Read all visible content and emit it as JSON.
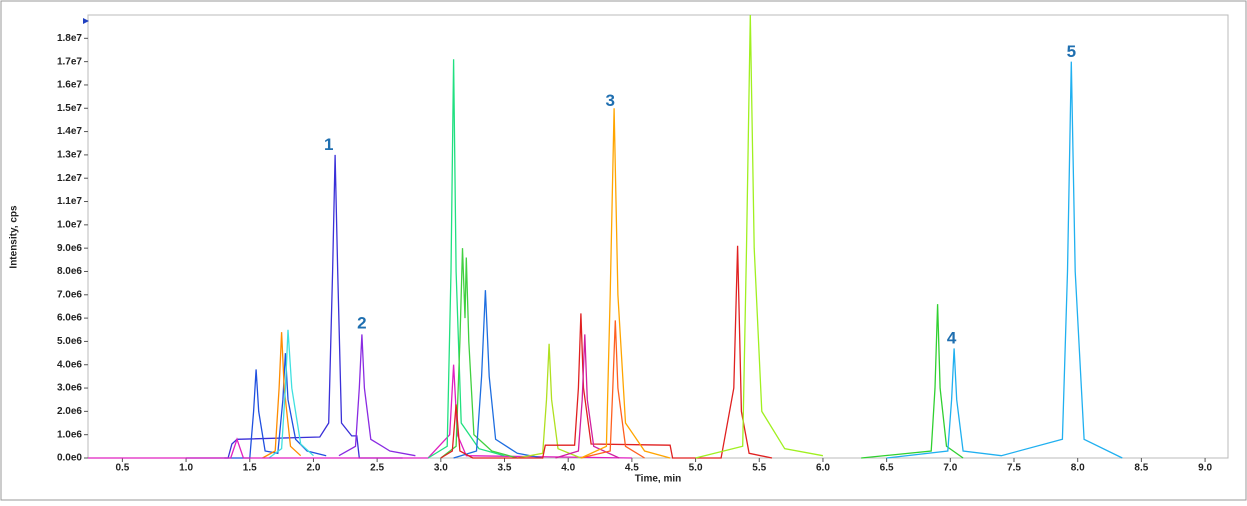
{
  "chart_data": {
    "type": "line",
    "x_label": "Time, min",
    "y_label": "Intensity, cps",
    "xlim": [
      0.23,
      9.18
    ],
    "ylim": [
      0,
      19000000.0
    ],
    "xticks": [
      0.5,
      {
        "value": 1,
        "label": "1.0"
      },
      1.5,
      {
        "value": 2,
        "label": "2.0"
      },
      2.5,
      {
        "value": 3,
        "label": "3.0"
      },
      3.5,
      {
        "value": 4,
        "label": "4.0"
      },
      4.5,
      {
        "value": 5,
        "label": "5.0"
      },
      5.5,
      {
        "value": 6,
        "label": "6.0"
      },
      6.5,
      {
        "value": 7,
        "label": "7.0"
      },
      7.5,
      {
        "value": 8,
        "label": "8.0"
      },
      8.5,
      {
        "value": 9,
        "label": "9.0"
      }
    ],
    "yticks": [
      {
        "value": 0,
        "label": "0.0e0"
      },
      {
        "value": 1000000.0,
        "label": "1.0e6"
      },
      {
        "value": 2000000.0,
        "label": "2.0e6"
      },
      {
        "value": 3000000.0,
        "label": "3.0e6"
      },
      {
        "value": 4000000.0,
        "label": "4.0e6"
      },
      {
        "value": 5000000.0,
        "label": "5.0e6"
      },
      {
        "value": 6000000.0,
        "label": "6.0e6"
      },
      {
        "value": 7000000.0,
        "label": "7.0e6"
      },
      {
        "value": 8000000.0,
        "label": "8.0e6"
      },
      {
        "value": 9000000.0,
        "label": "9.0e6"
      },
      {
        "value": 10000000.0,
        "label": "1.0e7"
      },
      {
        "value": 11000000.0,
        "label": "1.1e7"
      },
      {
        "value": 12000000.0,
        "label": "1.2e7"
      },
      {
        "value": 13000000.0,
        "label": "1.3e7"
      },
      {
        "value": 14000000.0,
        "label": "1.4e7"
      },
      {
        "value": 15000000.0,
        "label": "1.5e7"
      },
      {
        "value": 16000000.0,
        "label": "1.6e7"
      },
      {
        "value": 17000000.0,
        "label": "1.7e7"
      },
      {
        "value": 18000000.0,
        "label": "1.8e7"
      }
    ],
    "series": [
      {
        "color": "#3a30d8",
        "x": [
          1.0,
          1.33,
          1.36,
          1.4,
          2.05,
          2.12,
          2.15,
          2.17,
          2.19,
          2.22,
          2.3,
          2.34,
          2.36,
          2.7
        ],
        "values": [
          0,
          0,
          600000.0,
          800000.0,
          900000.0,
          1500000.0,
          8000000.0,
          13000000.0,
          8000000.0,
          1500000.0,
          950000.0,
          950000.0,
          0,
          0
        ]
      },
      {
        "color": "#8a2be2",
        "x": [
          2.2,
          2.33,
          2.36,
          2.38,
          2.4,
          2.45,
          2.6,
          2.8
        ],
        "values": [
          100000.0,
          500000.0,
          3000000.0,
          5300000.0,
          3000000.0,
          800000.0,
          300000.0,
          100000.0
        ]
      },
      {
        "color": "#2050e0",
        "x": [
          1.3,
          1.5,
          1.53,
          1.55,
          1.57,
          1.62,
          1.72,
          1.76,
          1.78,
          1.8,
          1.86,
          1.95,
          2.1
        ],
        "values": [
          0,
          0,
          2000000.0,
          3800000.0,
          2000000.0,
          300000.0,
          200000.0,
          2500000.0,
          4500000.0,
          2500000.0,
          800000.0,
          300000.0,
          100000.0
        ]
      },
      {
        "color": "#ff8c00",
        "x": [
          1.6,
          1.7,
          1.73,
          1.75,
          1.77,
          1.82,
          1.9
        ],
        "values": [
          0,
          300000.0,
          3000000.0,
          5400000.0,
          3000000.0,
          500000.0,
          100000.0
        ]
      },
      {
        "color": "#40e0e0",
        "x": [
          1.65,
          1.75,
          1.78,
          1.8,
          1.83,
          1.9,
          2.0
        ],
        "values": [
          0,
          400000.0,
          3000000.0,
          5500000.0,
          3000000.0,
          600000.0,
          100000.0
        ]
      },
      {
        "color": "#e020c0",
        "x": [
          0.23,
          1.35,
          1.4,
          1.45,
          2.9,
          3.07,
          3.1,
          3.13,
          3.2,
          4.5
        ],
        "values": [
          0,
          0,
          800000.0,
          0,
          0,
          1000000.0,
          4000000.0,
          1000000.0,
          100000.0,
          0
        ]
      },
      {
        "color": "#20e080",
        "x": [
          2.9,
          3.05,
          3.08,
          3.1,
          3.12,
          3.16,
          3.3,
          3.5
        ],
        "values": [
          0,
          500000.0,
          8000000.0,
          17100000.0,
          8000000.0,
          1500000.0,
          400000.0,
          100000.0
        ]
      },
      {
        "color": "#40d040",
        "x": [
          3.0,
          3.12,
          3.15,
          3.17,
          3.19,
          3.2,
          3.22,
          3.26,
          3.4,
          3.6
        ],
        "values": [
          0,
          500000.0,
          5000000.0,
          9000000.0,
          6000000.0,
          8600000.0,
          5000000.0,
          1000000.0,
          300000.0,
          0
        ]
      },
      {
        "color": "#1e6ee0",
        "x": [
          3.1,
          3.28,
          3.32,
          3.35,
          3.38,
          3.43,
          3.6,
          3.8
        ],
        "values": [
          0,
          300000.0,
          3500000.0,
          7200000.0,
          3500000.0,
          800000.0,
          200000.0,
          0
        ]
      },
      {
        "color": "#b0e020",
        "x": [
          3.6,
          3.8,
          3.83,
          3.85,
          3.87,
          3.92,
          4.1
        ],
        "values": [
          0,
          200000.0,
          2500000.0,
          4900000.0,
          2500000.0,
          400000.0,
          0
        ]
      },
      {
        "color": "#e02020",
        "x": [
          3.0,
          3.09,
          3.12,
          3.15,
          3.25,
          3.8,
          3.82,
          4.05,
          4.08,
          4.1,
          4.12,
          4.18,
          4.8,
          4.82,
          5.2,
          5.3,
          5.33,
          5.36,
          5.42,
          5.6
        ],
        "values": [
          0,
          300000.0,
          2300000.0,
          300000.0,
          0,
          0,
          550000.0,
          550000.0,
          3000000.0,
          6200000.0,
          3000000.0,
          600000.0,
          550000.0,
          0,
          0,
          3000000.0,
          9100000.0,
          2000000.0,
          200000.0,
          0
        ]
      },
      {
        "color": "#d020a0",
        "x": [
          3.9,
          4.08,
          4.11,
          4.13,
          4.15,
          4.2,
          4.4
        ],
        "values": [
          0,
          300000.0,
          2500000.0,
          5300000.0,
          2500000.0,
          500000.0,
          0
        ]
      },
      {
        "color": "#ff6020",
        "x": [
          4.1,
          4.33,
          4.35,
          4.37,
          4.39,
          4.45,
          4.6
        ],
        "values": [
          0,
          300000.0,
          3000000.0,
          5900000.0,
          3000000.0,
          500000.0,
          0
        ]
      },
      {
        "color": "#ffa500",
        "x": [
          4.1,
          4.3,
          4.33,
          4.36,
          4.39,
          4.45,
          4.6,
          4.8
        ],
        "values": [
          0,
          500000.0,
          7000000.0,
          15000000.0,
          7000000.0,
          1500000.0,
          300000.0,
          0
        ]
      },
      {
        "color": "#a0f020",
        "x": [
          5.0,
          5.37,
          5.4,
          5.43,
          5.46,
          5.52,
          5.7,
          6.0
        ],
        "values": [
          0,
          500000.0,
          9000000.0,
          19000000.0,
          9000000.0,
          2000000.0,
          400000.0,
          100000.0
        ]
      },
      {
        "color": "#30d030",
        "x": [
          6.3,
          6.85,
          6.88,
          6.9,
          6.92,
          6.97,
          7.1
        ],
        "values": [
          0,
          300000.0,
          3000000.0,
          6600000.0,
          3000000.0,
          500000.0,
          0
        ]
      },
      {
        "color": "#20b0f0",
        "x": [
          6.5,
          6.98,
          7.01,
          7.03,
          7.05,
          7.1,
          7.4,
          7.88,
          7.92,
          7.95,
          7.98,
          8.05,
          8.35
        ],
        "values": [
          0,
          300000.0,
          2500000.0,
          4700000.0,
          2500000.0,
          300000.0,
          100000.0,
          800000.0,
          8000000.0,
          17000000.0,
          8000000.0,
          800000.0,
          0
        ]
      }
    ],
    "annotations": [
      {
        "text": "1",
        "x": 2.12,
        "y": 13400000.0
      },
      {
        "text": "2",
        "x": 2.38,
        "y": 5750000.0
      },
      {
        "text": "3",
        "x": 4.33,
        "y": 15300000.0
      },
      {
        "text": "4",
        "x": 7.01,
        "y": 5100000.0
      },
      {
        "text": "5",
        "x": 7.95,
        "y": 17400000.0
      }
    ]
  }
}
